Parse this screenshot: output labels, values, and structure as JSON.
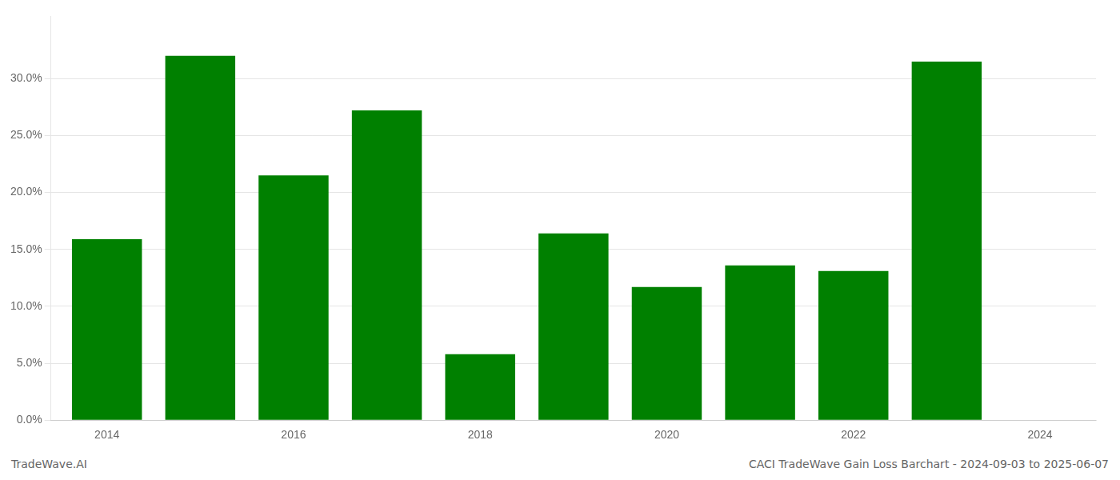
{
  "chart_data": {
    "type": "bar",
    "x": [
      2014,
      2015,
      2016,
      2017,
      2018,
      2019,
      2020,
      2021,
      2022,
      2023
    ],
    "values": [
      0.159,
      0.32,
      0.215,
      0.272,
      0.058,
      0.164,
      0.117,
      0.136,
      0.131,
      0.315
    ],
    "color": "#008000",
    "xlim": [
      2013.4,
      2024.6
    ],
    "xticks": [
      2014,
      2016,
      2018,
      2020,
      2022,
      2024
    ],
    "ylim": [
      0.0,
      0.355
    ],
    "yticks": [
      {
        "value": 0.0,
        "label": "0.0%"
      },
      {
        "value": 0.05,
        "label": "5.0%"
      },
      {
        "value": 0.1,
        "label": "10.0%"
      },
      {
        "value": 0.15,
        "label": "15.0%"
      },
      {
        "value": 0.2,
        "label": "20.0%"
      },
      {
        "value": 0.25,
        "label": "25.0%"
      },
      {
        "value": 0.3,
        "label": "30.0%"
      }
    ],
    "grid": true,
    "annotations": [
      "TradeWave.AI",
      "CACI TradeWave Gain Loss Barchart - 2024-09-03 to 2025-06-07"
    ]
  }
}
